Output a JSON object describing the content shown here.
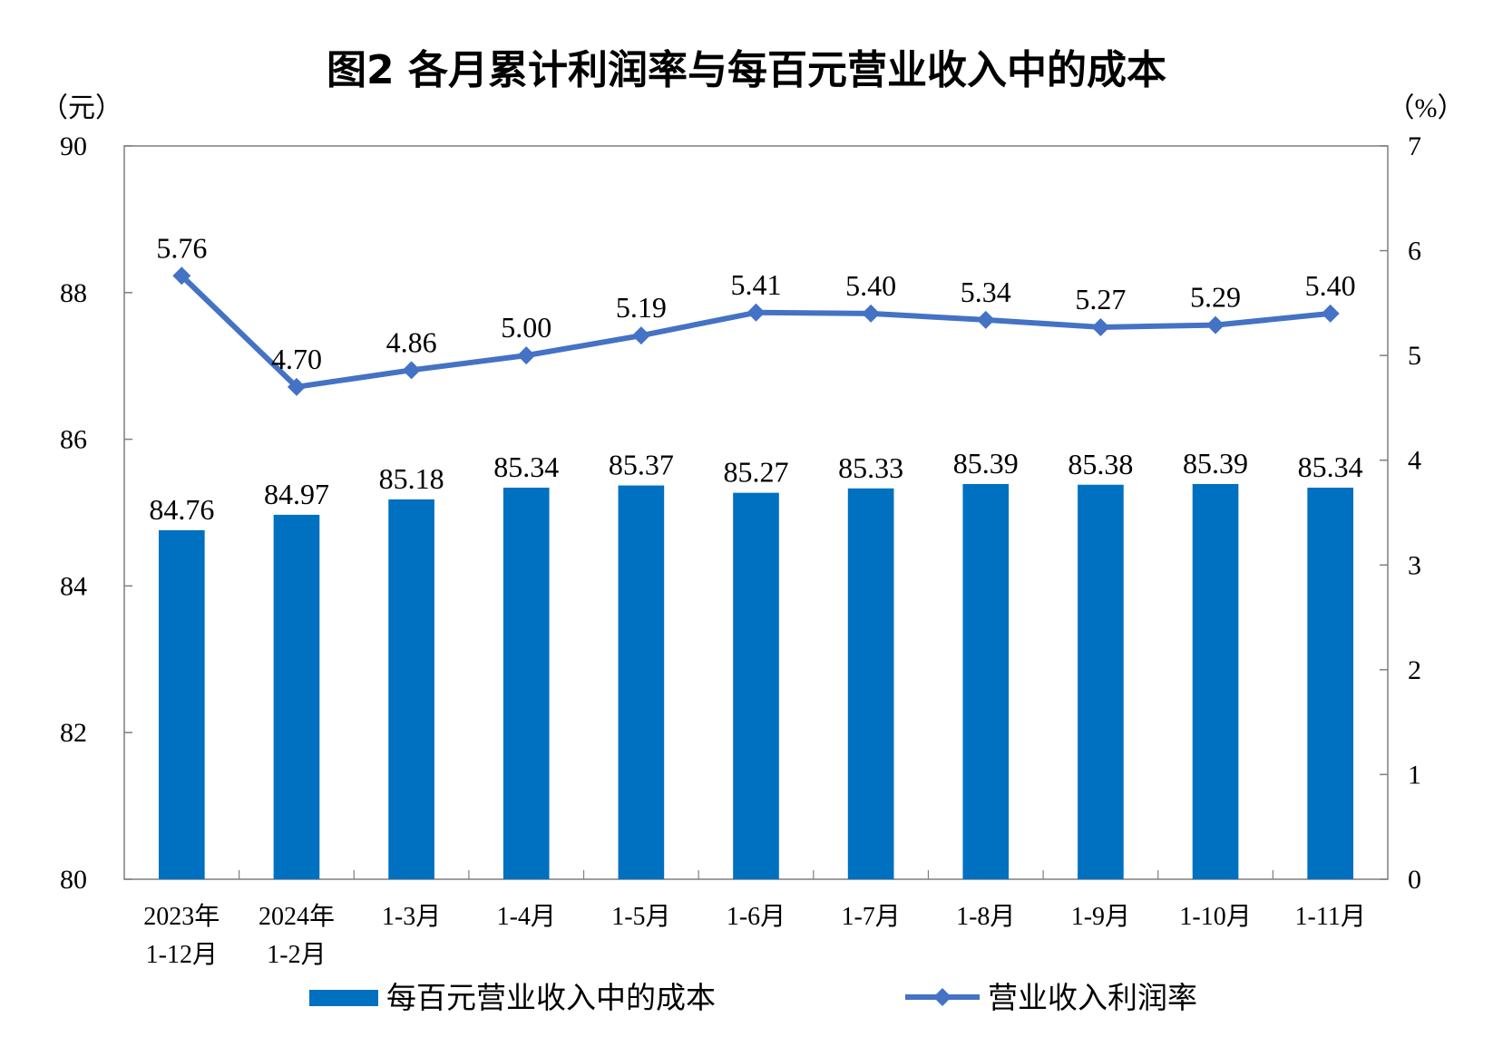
{
  "chart_data": {
    "type": "bar",
    "title": "图2  各月累计利润率与每百元营业收入中的成本",
    "y_left_unit": "（元）",
    "y_right_unit": "（%）",
    "categories": [
      [
        "2023年",
        "1-12月"
      ],
      [
        "2024年",
        "1-2月"
      ],
      [
        "1-3月"
      ],
      [
        "1-4月"
      ],
      [
        "1-5月"
      ],
      [
        "1-6月"
      ],
      [
        "1-7月"
      ],
      [
        "1-8月"
      ],
      [
        "1-9月"
      ],
      [
        "1-10月"
      ],
      [
        "1-11月"
      ]
    ],
    "series": [
      {
        "name": "每百元营业收入中的成本",
        "type": "bar",
        "axis": "left",
        "color": "#0070C0",
        "values": [
          84.76,
          84.97,
          85.18,
          85.34,
          85.37,
          85.27,
          85.33,
          85.39,
          85.38,
          85.39,
          85.34
        ],
        "labels": [
          "84.76",
          "84.97",
          "85.18",
          "85.34",
          "85.37",
          "85.27",
          "85.33",
          "85.39",
          "85.38",
          "85.39",
          "85.34"
        ]
      },
      {
        "name": "营业收入利润率",
        "type": "line",
        "axis": "right",
        "color": "#4472C4",
        "marker": "diamond",
        "values": [
          5.76,
          4.7,
          4.86,
          5.0,
          5.19,
          5.41,
          5.4,
          5.34,
          5.27,
          5.29,
          5.4
        ],
        "labels": [
          "5.76",
          "4.70",
          "4.86",
          "5.00",
          "5.19",
          "5.41",
          "5.40",
          "5.34",
          "5.27",
          "5.29",
          "5.40"
        ]
      }
    ],
    "y_left": {
      "min": 80,
      "max": 90,
      "ticks": [
        80,
        82,
        84,
        86,
        88,
        90
      ]
    },
    "y_right": {
      "min": 0,
      "max": 7,
      "ticks": [
        0,
        1,
        2,
        3,
        4,
        5,
        6,
        7
      ]
    },
    "legend_position": "bottom",
    "grid": false
  }
}
